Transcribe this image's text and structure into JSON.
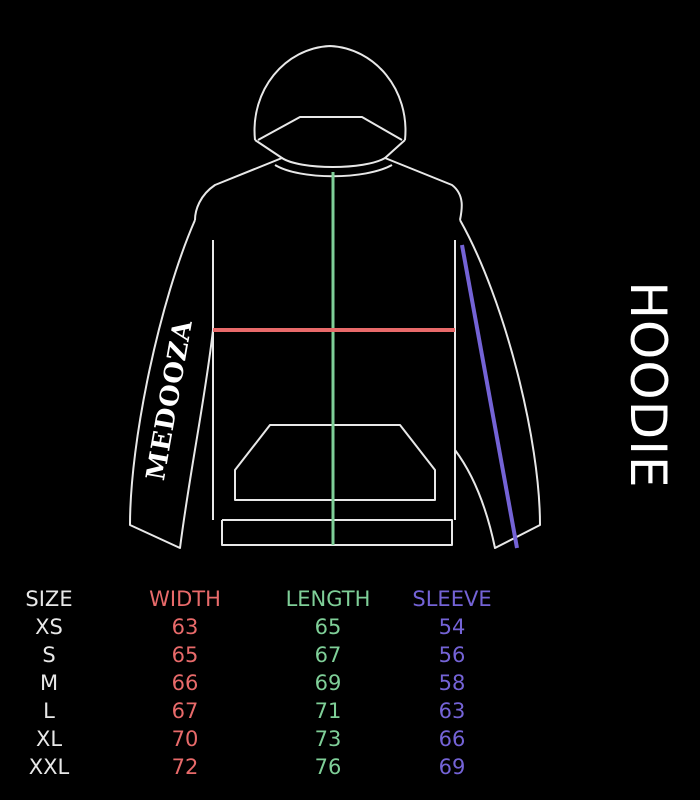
{
  "title": "HOODIE",
  "brand": "MEDOOZA",
  "colors": {
    "width": "#e86a6a",
    "length": "#7fcf98",
    "sleeve": "#7463d6",
    "outline": "#e8e8e8",
    "background": "#000000"
  },
  "table": {
    "headers": [
      "SIZE",
      "WIDTH",
      "LENGTH",
      "SLEEVE"
    ],
    "rows": [
      [
        "XS",
        "63",
        "65",
        "54"
      ],
      [
        "S",
        "65",
        "67",
        "56"
      ],
      [
        "M",
        "66",
        "69",
        "58"
      ],
      [
        "L",
        "67",
        "71",
        "63"
      ],
      [
        "XL",
        "70",
        "73",
        "66"
      ],
      [
        "XXL",
        "72",
        "76",
        "69"
      ]
    ]
  }
}
